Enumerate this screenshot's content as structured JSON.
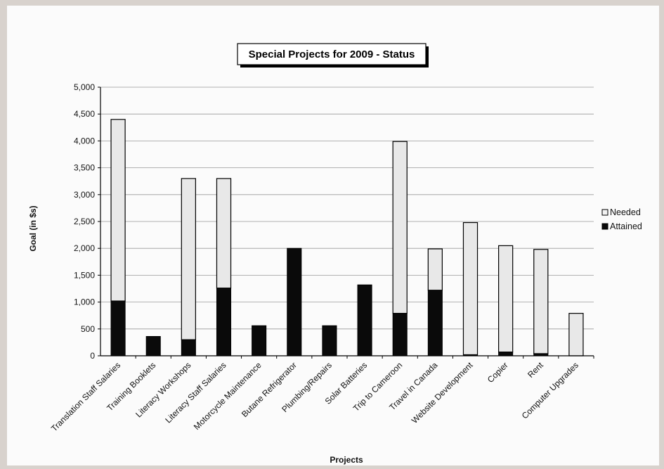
{
  "chart_data": {
    "type": "bar",
    "stacked": true,
    "title": "Special Projects for 2009 - Status",
    "xlabel": "Projects",
    "ylabel": "Goal (in $s)",
    "ylim": [
      0,
      5000
    ],
    "yticks": [
      "0",
      "500",
      "1,000",
      "1,500",
      "2,000",
      "2,500",
      "3,000",
      "3,500",
      "4,000",
      "4,500",
      "5,000"
    ],
    "grid": true,
    "legend_position": "right",
    "categories": [
      "Translation Staff Salaries",
      "Training Booklets",
      "Literacy Workshops",
      "Literacy Staff Salaries",
      "Motorcycle Maintenance",
      "Butane Refrigerator",
      "Plumbing/Repairs",
      "Solar Batteries",
      "Trip to Cameroon",
      "Travel in Canada",
      "Website Development",
      "Copier",
      "Rent",
      "Computer Upgrades"
    ],
    "series": [
      {
        "name": "Attained",
        "color": "#0a0a0a",
        "values": [
          1020,
          360,
          300,
          1260,
          560,
          2000,
          560,
          1320,
          790,
          1220,
          20,
          70,
          40,
          0
        ]
      },
      {
        "name": "Needed",
        "color": "#e8e8e8",
        "values": [
          3380,
          0,
          3000,
          2040,
          0,
          0,
          0,
          0,
          3200,
          770,
          2460,
          1980,
          1940,
          790
        ]
      }
    ],
    "legend": [
      "Needed",
      "Attained"
    ]
  }
}
